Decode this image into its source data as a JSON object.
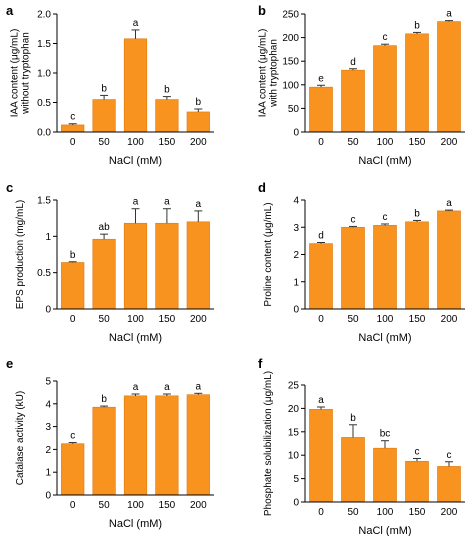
{
  "figure": {
    "bar_color": "#F7931E",
    "bar_edge_color": "#E07A10"
  },
  "chart_data": [
    {
      "panel": "a",
      "type": "bar",
      "categories": [
        "0",
        "50",
        "100",
        "150",
        "200"
      ],
      "values": [
        0.12,
        0.55,
        1.58,
        0.55,
        0.34
      ],
      "errors": [
        0.02,
        0.07,
        0.15,
        0.05,
        0.05
      ],
      "letters": [
        "c",
        "b",
        "a",
        "b",
        "b"
      ],
      "xlabel": "NaCl (mM)",
      "ylabel": [
        "IAA content (μg/mL)",
        "without tryptophan"
      ],
      "ylim": [
        0,
        2.0
      ],
      "yticks": [
        0.0,
        0.5,
        1.0,
        1.5,
        2.0
      ],
      "ytick_labels": [
        "0.0",
        "0.5",
        "1.0",
        "1.5",
        "2.0"
      ]
    },
    {
      "panel": "b",
      "type": "bar",
      "categories": [
        "0",
        "50",
        "100",
        "150",
        "200"
      ],
      "values": [
        95,
        131,
        183,
        208,
        234
      ],
      "errors": [
        4,
        3,
        3,
        3,
        2
      ],
      "letters": [
        "e",
        "d",
        "c",
        "b",
        "a"
      ],
      "xlabel": "NaCl (mM)",
      "ylabel": [
        "IAA content (μg/mL)",
        "with tryptophan"
      ],
      "ylim": [
        0,
        250
      ],
      "yticks": [
        0,
        50,
        100,
        150,
        200,
        250
      ],
      "ytick_labels": [
        "0",
        "50",
        "100",
        "150",
        "200",
        "250"
      ]
    },
    {
      "panel": "c",
      "type": "bar",
      "categories": [
        "0",
        "50",
        "100",
        "150",
        "200"
      ],
      "values": [
        0.64,
        0.96,
        1.18,
        1.18,
        1.2
      ],
      "errors": [
        0.01,
        0.07,
        0.2,
        0.2,
        0.15
      ],
      "letters": [
        "b",
        "ab",
        "a",
        "a",
        "a"
      ],
      "xlabel": "NaCl (mM)",
      "ylabel": [
        "EPS production (mg/mL)"
      ],
      "ylim": [
        0,
        1.5
      ],
      "yticks": [
        0.0,
        0.5,
        1.0,
        1.5
      ],
      "ytick_labels": [
        "0",
        "0.5",
        "1",
        "1.5"
      ]
    },
    {
      "panel": "d",
      "type": "bar",
      "categories": [
        "0",
        "50",
        "100",
        "150",
        "200"
      ],
      "values": [
        2.4,
        3.0,
        3.07,
        3.2,
        3.6
      ],
      "errors": [
        0.04,
        0.03,
        0.05,
        0.05,
        0.03
      ],
      "letters": [
        "d",
        "c",
        "c",
        "b",
        "a"
      ],
      "xlabel": "NaCl (mM)",
      "ylabel": [
        "Proline content (μg/mL)"
      ],
      "ylim": [
        0,
        4
      ],
      "yticks": [
        0,
        1,
        2,
        3,
        4
      ],
      "ytick_labels": [
        "0",
        "1",
        "2",
        "3",
        "4"
      ]
    },
    {
      "panel": "e",
      "type": "bar",
      "categories": [
        "0",
        "50",
        "100",
        "150",
        "200"
      ],
      "values": [
        2.25,
        3.85,
        4.35,
        4.35,
        4.4
      ],
      "errors": [
        0.05,
        0.05,
        0.08,
        0.08,
        0.06
      ],
      "letters": [
        "c",
        "b",
        "a",
        "a",
        "a"
      ],
      "xlabel": "NaCl (mM)",
      "ylabel": [
        "Catalase activity (kU)"
      ],
      "ylim": [
        0,
        5
      ],
      "yticks": [
        0,
        1,
        2,
        3,
        4,
        5
      ],
      "ytick_labels": [
        "0",
        "1",
        "2",
        "3",
        "4",
        "5"
      ]
    },
    {
      "panel": "f",
      "type": "bar",
      "categories": [
        "0",
        "50",
        "100",
        "150",
        "200"
      ],
      "values": [
        19.8,
        13.8,
        11.5,
        8.7,
        7.6
      ],
      "errors": [
        0.5,
        2.7,
        1.6,
        0.6,
        1.0
      ],
      "letters": [
        "a",
        "b",
        "bc",
        "c",
        "c"
      ],
      "xlabel": "NaCl (mM)",
      "ylabel": [
        "Phosphate solubilization (μg/mL)"
      ],
      "ylim": [
        0,
        25
      ],
      "yticks": [
        0,
        5,
        10,
        15,
        20,
        25
      ],
      "ytick_labels": [
        "0",
        "5",
        "10",
        "15",
        "20",
        "25"
      ]
    }
  ]
}
